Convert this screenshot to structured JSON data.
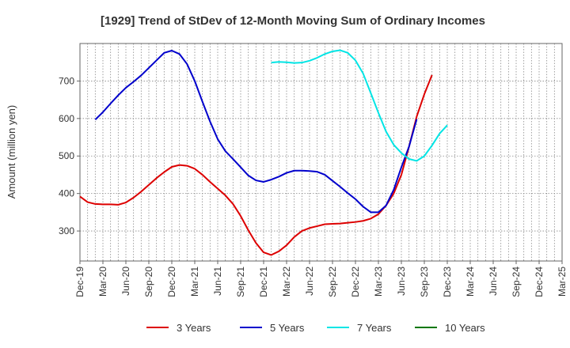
{
  "chart_data": {
    "type": "line",
    "title": "[1929]  Trend of StDev of 12-Month Moving Sum of Ordinary Incomes",
    "ylabel": "Amount (million yen)",
    "xlabel": "",
    "x_tick_labels": [
      "Dec-19",
      "Mar-20",
      "Jun-20",
      "Sep-20",
      "Dec-20",
      "Mar-21",
      "Jun-21",
      "Sep-21",
      "Dec-21",
      "Mar-22",
      "Jun-22",
      "Sep-22",
      "Dec-22",
      "Mar-23",
      "Jun-23",
      "Sep-23",
      "Dec-23",
      "Mar-24",
      "Jun-24",
      "Sep-24",
      "Dec-24",
      "Mar-25"
    ],
    "y_ticks": [
      300,
      400,
      500,
      600,
      700
    ],
    "ylim": [
      220,
      800
    ],
    "grid": true,
    "legend_position": "bottom",
    "series": [
      {
        "name": "3 Years",
        "color": "#dd0000",
        "start_index": 0,
        "values": [
          392,
          377,
          372,
          371,
          371,
          370,
          376,
          389,
          405,
          423,
          441,
          457,
          471,
          476,
          474,
          466,
          450,
          431,
          413,
          395,
          372,
          340,
          302,
          268,
          243,
          236,
          246,
          262,
          284,
          300,
          308,
          313,
          318,
          319,
          320,
          322,
          324,
          327,
          333,
          345,
          368,
          400,
          450,
          525,
          605,
          665,
          716
        ]
      },
      {
        "name": "5 Years",
        "color": "#0000cc",
        "start_index": 2,
        "values": [
          597,
          617,
          640,
          662,
          682,
          698,
          715,
          735,
          755,
          775,
          781,
          772,
          745,
          700,
          645,
          592,
          545,
          513,
          492,
          470,
          448,
          435,
          431,
          437,
          445,
          455,
          461,
          461,
          460,
          458,
          450,
          434,
          418,
          401,
          385,
          365,
          350,
          350,
          368,
          410,
          470,
          525,
          598
        ]
      },
      {
        "name": "7 Years",
        "color": "#00e5e5",
        "start_index": 25,
        "values": [
          749,
          751,
          750,
          748,
          749,
          754,
          762,
          772,
          779,
          782,
          775,
          755,
          720,
          668,
          615,
          565,
          530,
          508,
          492,
          487,
          500,
          528,
          560,
          582
        ]
      },
      {
        "name": "10 Years",
        "color": "#007700",
        "start_index": 0,
        "values": []
      }
    ]
  }
}
